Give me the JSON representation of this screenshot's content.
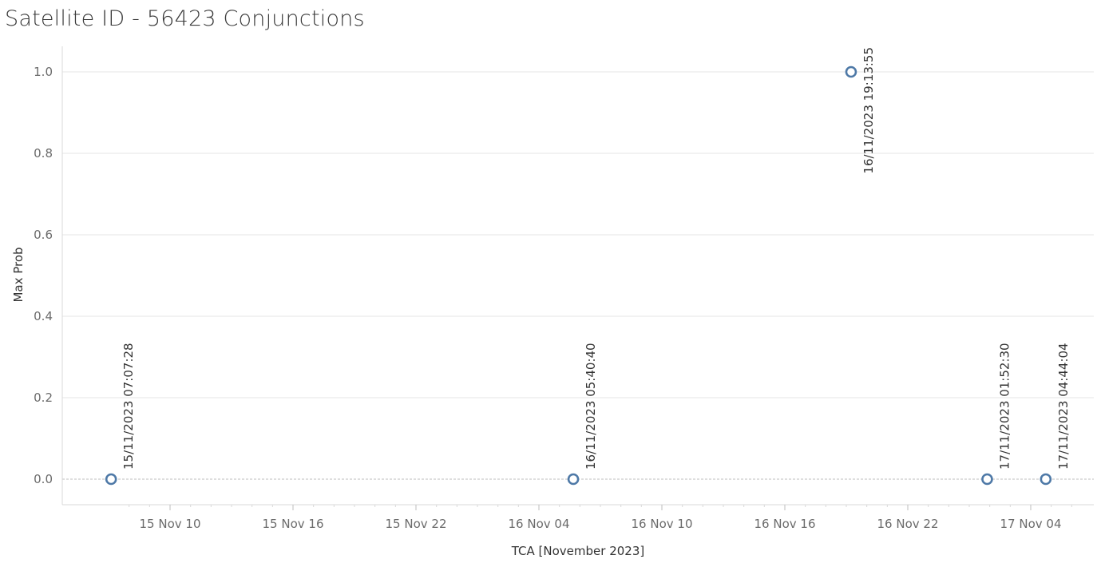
{
  "chart_data": {
    "type": "scatter",
    "title": "Satellite ID - 56423 Conjunctions",
    "xlabel": "TCA [November 2023]",
    "ylabel": "Max Prob",
    "x_ticks": [
      {
        "label": "15 Nov 10",
        "hours": 34
      },
      {
        "label": "15 Nov 16",
        "hours": 40
      },
      {
        "label": "15 Nov 22",
        "hours": 46
      },
      {
        "label": "16 Nov 04",
        "hours": 52
      },
      {
        "label": "16 Nov 10",
        "hours": 58
      },
      {
        "label": "16 Nov 16",
        "hours": 64
      },
      {
        "label": "16 Nov 22",
        "hours": 70
      },
      {
        "label": "17 Nov 04",
        "hours": 76
      }
    ],
    "xlim_hours": [
      31.5,
      78.7
    ],
    "ylim": [
      -0.06,
      1.06
    ],
    "y_ticks": [
      0.0,
      0.2,
      0.4,
      0.6,
      0.8,
      1.0
    ],
    "y_tick_labels": [
      "0.0",
      "0.2",
      "0.4",
      "0.6",
      "0.8",
      "1.0"
    ],
    "points": [
      {
        "label": "15/11/2023 07:07:28",
        "hours": 31.124,
        "y": 0.0
      },
      {
        "label": "16/11/2023 05:40:40",
        "hours": 53.678,
        "y": 0.0
      },
      {
        "label": "16/11/2023 19:13:55",
        "hours": 67.232,
        "y": 1.0
      },
      {
        "label": "17/11/2023 01:52:30",
        "hours": 73.875,
        "y": 0.0
      },
      {
        "label": "17/11/2023 04:44:04",
        "hours": 76.734,
        "y": 0.0
      }
    ],
    "grid": true,
    "colors": {
      "marker": "#4e79a7",
      "grid": "#e6e6e6",
      "zero_line": "#bdbdbd",
      "axis": "#d9d9d9"
    }
  }
}
